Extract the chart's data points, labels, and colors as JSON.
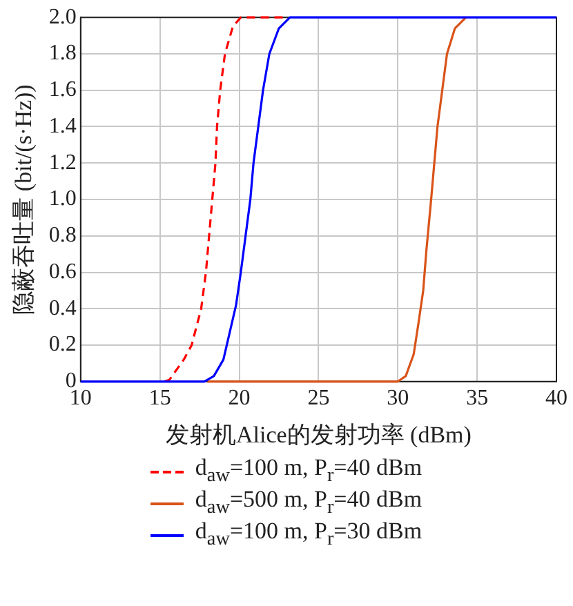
{
  "chart_data": {
    "type": "line",
    "xlabel": "发射机Alice的发射功率 (dBm)",
    "ylabel": "隐蔽吞吐量 (bit/(s·Hz))",
    "xlim": [
      10,
      40
    ],
    "xticks": [
      10,
      15,
      20,
      25,
      30,
      35,
      40
    ],
    "ylim": [
      0,
      2
    ],
    "yticks": [
      0,
      0.2,
      0.4,
      0.6,
      0.8,
      {
        "value": 1,
        "label": "1.0"
      },
      1.2,
      1.4,
      1.6,
      1.8,
      {
        "value": 2,
        "label": "2.0"
      }
    ],
    "grid": true,
    "legend": "bottom",
    "marker": "none",
    "series": [
      {
        "name": "d$_{aw}$=100 m, P$_{r}$=40 dBm",
        "color": "#ff0000",
        "line_style": "dashed",
        "x": [
          15.3,
          15.6,
          16.5,
          17.0,
          17.6,
          17.9,
          18.1,
          18.3,
          18.5,
          18.6,
          18.8,
          19.1,
          19.6,
          20.1,
          23.0
        ],
        "values": [
          0,
          0.01,
          0.12,
          0.2,
          0.4,
          0.6,
          0.8,
          1.0,
          1.2,
          1.4,
          1.6,
          1.8,
          1.95,
          2.0,
          2.0
        ]
      },
      {
        "name": "d$_{aw}$=500 m, P$_{r}$=40 dBm",
        "color": "#d95319",
        "line_style": "solid",
        "x": [
          18.0,
          30.0,
          30.5,
          31.0,
          31.3,
          31.6,
          31.8,
          32.1,
          32.3,
          32.5,
          32.8,
          33.1,
          33.6,
          34.3
        ],
        "values": [
          0,
          0,
          0.03,
          0.15,
          0.32,
          0.5,
          0.72,
          1.0,
          1.2,
          1.4,
          1.6,
          1.8,
          1.94,
          2.0
        ]
      },
      {
        "name": "d$_{aw}$=100 m, P$_{r}$=30 dBm",
        "color": "#0000ff",
        "line_style": "solid",
        "x": [
          10,
          17.8,
          18.4,
          19.0,
          19.4,
          19.8,
          20.1,
          20.4,
          20.7,
          20.9,
          21.2,
          21.5,
          21.9,
          22.5,
          23.2,
          40
        ],
        "values": [
          0,
          0,
          0.03,
          0.12,
          0.27,
          0.42,
          0.6,
          0.8,
          1.0,
          1.2,
          1.4,
          1.6,
          1.8,
          1.94,
          2.0,
          2.0
        ]
      }
    ]
  }
}
